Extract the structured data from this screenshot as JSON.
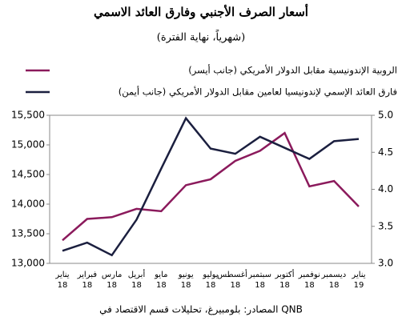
{
  "chart_data": {
    "type": "line",
    "title": "أسعار الصرف الأجنبي وفارق العائد الاسمي",
    "subtitle": "(شهرياً، نهاية الفترة)",
    "source": "المصادر: بلومبيرغ، تحليلات قسم الاقتصاد في QNB",
    "categories": [
      "يناير\n18",
      "فبراير\n18",
      "مارس\n18",
      "أبريل\n18",
      "مايو\n18",
      "يونيو\n18",
      "يوليو\n18",
      "أغسطس\n18",
      "سبتمبر\n18",
      "أكتوبر\n18",
      "نوفمبر\n18",
      "ديسمبر\n18",
      "يناير\n19"
    ],
    "series": [
      {
        "name": "الروبية الإندونيسية مقابل الدولار الأمريكي (جانب أيسر)",
        "color": "#8b1a5c",
        "axis": "y",
        "values": [
          13390,
          13750,
          13780,
          13920,
          13880,
          14320,
          14420,
          14730,
          14900,
          15200,
          14300,
          14390,
          13960
        ]
      },
      {
        "name": "فارق العائد الإسمي لإندونيسيا لعامين مقابل الدولار الأمريكي (جانب أيمن)",
        "color": "#1b1f3f",
        "axis": "y2",
        "values": [
          3.17,
          3.28,
          3.11,
          3.59,
          4.28,
          4.96,
          4.55,
          4.48,
          4.71,
          4.56,
          4.41,
          4.65,
          4.68
        ]
      }
    ],
    "ylim": [
      13000,
      15500
    ],
    "yticks": [
      {
        "value": 13000,
        "label": "13,000"
      },
      {
        "value": 13500,
        "label": "13,500"
      },
      {
        "value": 14000,
        "label": "14,000"
      },
      {
        "value": 14500,
        "label": "14,500"
      },
      {
        "value": 15000,
        "label": "15,000"
      },
      {
        "value": 15500,
        "label": "15,500"
      }
    ],
    "y2lim": [
      3,
      5
    ],
    "y2ticks": [
      {
        "value": 3,
        "label": "3.0"
      },
      3.5,
      {
        "value": 4,
        "label": "4.0"
      },
      4.5,
      {
        "value": 5,
        "label": "5.0"
      }
    ],
    "grid": false
  }
}
